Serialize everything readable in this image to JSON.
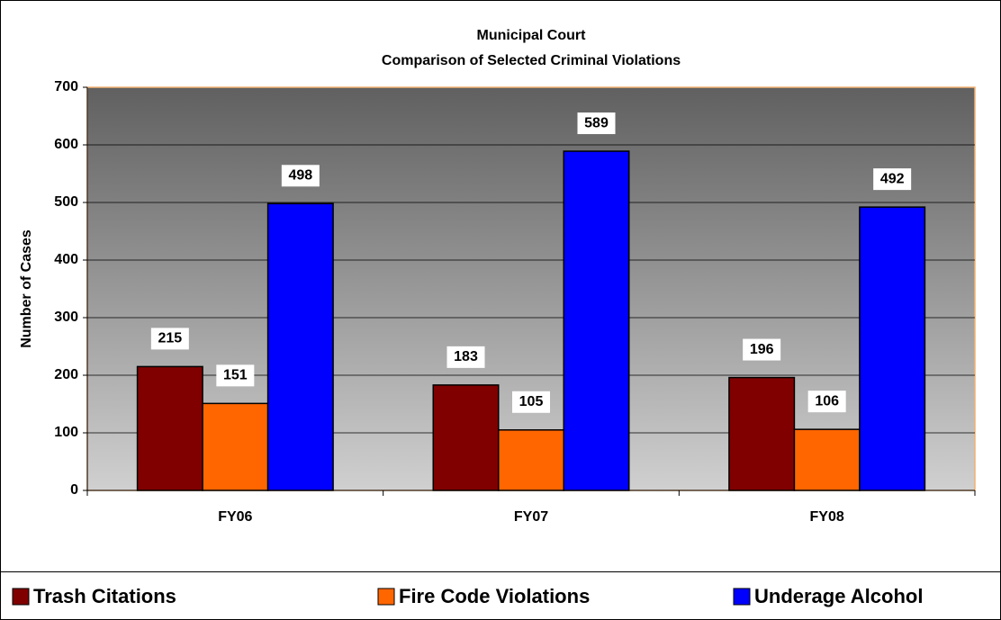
{
  "chart_data": {
    "type": "bar",
    "title": "Municipal Court",
    "subtitle": "Comparison of Selected Criminal Violations",
    "y_label": "Number of Cases",
    "categories": [
      "FY06",
      "FY07",
      "FY08"
    ],
    "series": [
      {
        "name": "Trash Citations",
        "color": "#800000",
        "values": [
          215,
          183,
          196
        ]
      },
      {
        "name": "Fire Code Violations",
        "color": "#ff6600",
        "values": [
          151,
          105,
          106
        ]
      },
      {
        "name": "Underage Alcohol",
        "color": "#0000ff",
        "values": [
          498,
          589,
          492
        ]
      }
    ],
    "ylim": [
      0,
      700
    ],
    "yticks": [
      0,
      100,
      200,
      300,
      400,
      500,
      600,
      700
    ],
    "grid": true,
    "legend": "bottom"
  }
}
